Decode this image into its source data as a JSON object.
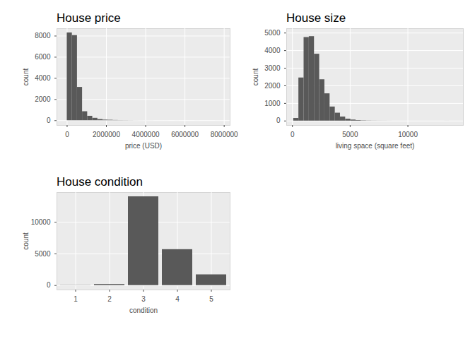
{
  "chart_data": [
    {
      "type": "histogram",
      "title": "House price",
      "x_label": "price (USD)",
      "y_label": "count",
      "bins": [
        0,
        260000,
        520000,
        780000,
        1040000,
        1300000,
        1560000,
        1820000,
        2080000,
        2340000,
        2600000,
        2860000,
        3120000,
        3380000,
        3640000,
        3900000,
        4160000,
        4420000,
        4680000,
        4940000,
        5200000,
        5460000,
        5720000,
        5980000,
        6240000,
        6500000,
        6760000,
        7020000,
        7280000,
        7540000,
        7800000
      ],
      "values": [
        8300,
        8050,
        3150,
        850,
        420,
        230,
        110,
        60,
        45,
        25,
        15,
        12,
        8,
        5,
        4,
        3,
        2,
        1,
        1,
        1,
        0,
        1,
        0,
        0,
        0,
        1,
        0,
        0,
        0,
        1
      ],
      "color": "#595959",
      "xlim": [
        -520000,
        8300000
      ],
      "xticks": [
        0,
        2000000,
        4000000,
        6000000,
        8000000
      ],
      "ylim": [
        -450,
        8700
      ],
      "yticks": [
        0,
        2000,
        4000,
        6000,
        8000
      ],
      "grid": true
    },
    {
      "type": "histogram",
      "title": "House size",
      "x_label": "living space (square feet)",
      "y_label": "count",
      "bins": [
        100,
        550,
        1000,
        1450,
        1900,
        2350,
        2800,
        3250,
        3700,
        4150,
        4600,
        5050,
        5500,
        5950,
        6400,
        6850,
        7300,
        7750,
        8200,
        8650,
        9100,
        9550,
        10000,
        10450,
        10900,
        11350,
        11800,
        12250,
        12700,
        13150,
        13600
      ],
      "values": [
        150,
        2450,
        4750,
        4800,
        3800,
        2350,
        1550,
        800,
        450,
        230,
        110,
        60,
        30,
        15,
        8,
        5,
        3,
        2,
        1,
        0,
        0,
        0,
        0,
        0,
        0,
        0,
        0,
        0,
        0,
        1
      ],
      "color": "#595959",
      "xlim": [
        -500,
        14800
      ],
      "xticks": [
        0,
        5000,
        10000
      ],
      "ylim": [
        -250,
        5250
      ],
      "yticks": [
        0,
        1000,
        2000,
        3000,
        4000,
        5000
      ],
      "grid": true
    },
    {
      "type": "bar",
      "title": "House condition",
      "x_label": "condition",
      "y_label": "count",
      "categories": [
        "1",
        "2",
        "3",
        "4",
        "5"
      ],
      "values": [
        30,
        170,
        14030,
        5680,
        1700
      ],
      "color": "#595959",
      "ylim": [
        -700,
        14700
      ],
      "yticks": [
        0,
        5000,
        10000
      ],
      "grid": true
    }
  ]
}
